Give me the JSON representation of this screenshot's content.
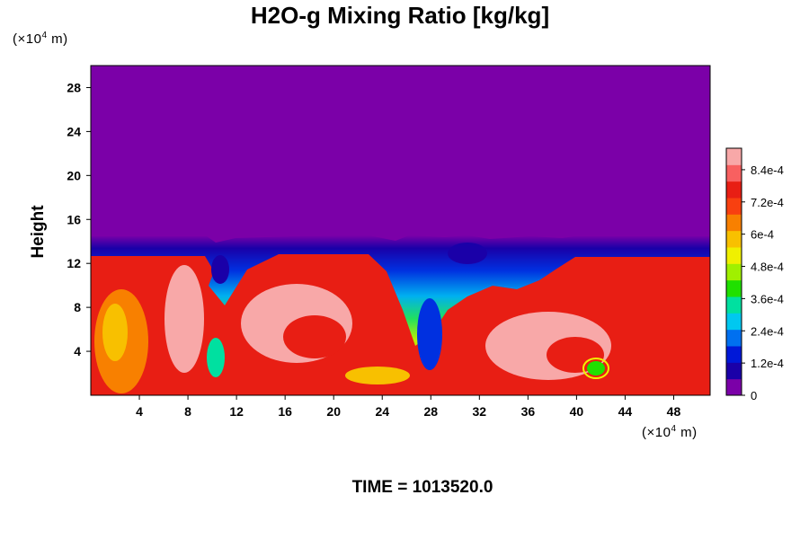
{
  "chart_data": {
    "type": "heatmap",
    "title": "H2O-g Mixing Ratio [kg/kg]",
    "ylabel": "Height",
    "x_units": {
      "base": "(×10",
      "exp": "4",
      "tail": " m)"
    },
    "y_units": {
      "base": "(×10",
      "exp": "4",
      "tail": " m)"
    },
    "xlim": [
      0,
      51
    ],
    "ylim": [
      0,
      30
    ],
    "x_ticks": [
      "4",
      "8",
      "12",
      "16",
      "20",
      "24",
      "28",
      "32",
      "36",
      "40",
      "44",
      "48"
    ],
    "y_ticks": [
      "4",
      "8",
      "12",
      "16",
      "20",
      "24",
      "28"
    ],
    "colorbar": {
      "min": 0,
      "max": 0.00092,
      "tick_labels": [
        "0",
        "1.2e-4",
        "2.4e-4",
        "3.6e-4",
        "4.8e-4",
        "6e-4",
        "7.2e-4",
        "8.4e-4"
      ],
      "colors": [
        "#7b00a8",
        "#1a00a8",
        "#0018d8",
        "#0070f0",
        "#00c8f0",
        "#00e0a0",
        "#20e000",
        "#a0f000",
        "#f0f000",
        "#f8c000",
        "#f88000",
        "#f84010",
        "#e81e14",
        "#f86060",
        "#f8a8a8"
      ]
    },
    "moist_layer_top": 13.5,
    "footer": "TIME = 1013520.0"
  }
}
